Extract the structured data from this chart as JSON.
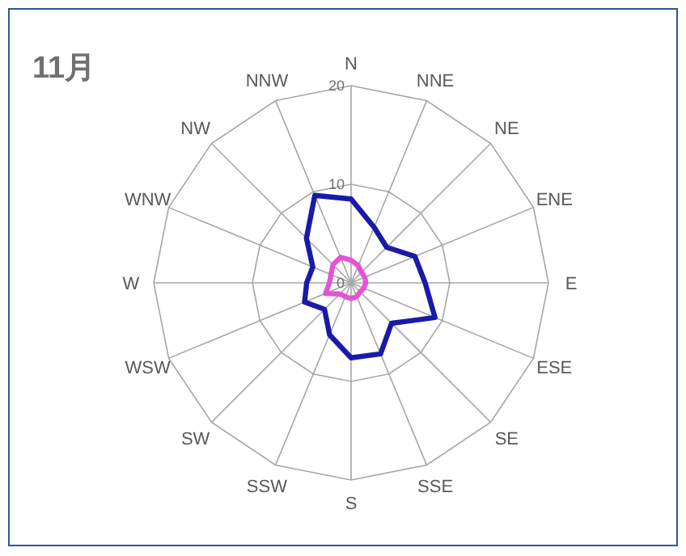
{
  "chart_data": {
    "type": "radar",
    "title": "11月",
    "categories": [
      "N",
      "NNE",
      "NE",
      "ENE",
      "E",
      "ESE",
      "SE",
      "SSE",
      "S",
      "SSW",
      "SW",
      "WSW",
      "W",
      "WNW",
      "NW",
      "NNW"
    ],
    "series": [
      {
        "color": "#1a1aa8",
        "values": [
          8.5,
          6.1,
          5.1,
          7.0,
          7.5,
          9.2,
          5.8,
          7.8,
          7.6,
          5.7,
          3.8,
          5.1,
          4.5,
          4.2,
          6.4,
          9.6
        ]
      },
      {
        "color": "#e455d6",
        "values": [
          2.3,
          1.9,
          1.5,
          1.5,
          1.5,
          1.4,
          1.3,
          1.5,
          1.6,
          1.5,
          1.6,
          2.8,
          2.2,
          2.2,
          2.6,
          2.8
        ]
      }
    ],
    "ylim": [
      0,
      20
    ],
    "yticks": [
      0,
      10,
      20
    ],
    "grid": true
  }
}
